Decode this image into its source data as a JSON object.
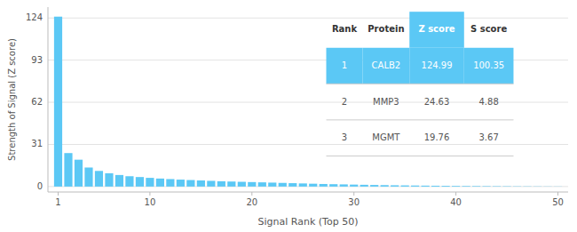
{
  "chart_data": {
    "type": "bar",
    "xlabel": "Signal Rank (Top 50)",
    "ylabel": "Strength of Signal (Z score)",
    "x": [
      1,
      2,
      3,
      4,
      5,
      6,
      7,
      8,
      9,
      10,
      11,
      12,
      13,
      14,
      15,
      16,
      17,
      18,
      19,
      20,
      21,
      22,
      23,
      24,
      25,
      26,
      27,
      28,
      29,
      30,
      31,
      32,
      33,
      34,
      35,
      36,
      37,
      38,
      39,
      40,
      41,
      42,
      43,
      44,
      45,
      46,
      47,
      48,
      49,
      50
    ],
    "values": [
      124.99,
      24.63,
      19.76,
      14.0,
      11.5,
      9.8,
      8.5,
      7.6,
      7.0,
      6.4,
      5.9,
      5.5,
      5.1,
      4.8,
      4.5,
      4.2,
      3.9,
      3.7,
      3.5,
      3.3,
      3.1,
      2.9,
      2.7,
      2.5,
      2.3,
      2.1,
      1.9,
      1.75,
      1.6,
      1.45,
      1.3,
      1.18,
      1.06,
      0.95,
      0.86,
      0.77,
      0.69,
      0.62,
      0.55,
      0.49,
      0.43,
      0.38,
      0.33,
      0.29,
      0.25,
      0.21,
      0.18,
      0.15,
      0.12,
      0.1
    ],
    "color": "#5bc8f5",
    "xlim": [
      0,
      51
    ],
    "xticks": [
      1,
      10,
      20,
      30,
      40,
      50
    ],
    "ylim": [
      -4,
      132
    ],
    "yticks": [
      0,
      31,
      62,
      93,
      124
    ],
    "grid": true,
    "table": {
      "headers": [
        "Rank",
        "Protein",
        "Z score",
        "S score"
      ],
      "rows": [
        [
          "1",
          "CALB2",
          "124.99",
          "100.35"
        ],
        [
          "2",
          "MMP3",
          "24.63",
          "4.88"
        ],
        [
          "3",
          "MGMT",
          "19.76",
          "3.67"
        ]
      ],
      "highlight": [
        true,
        false,
        false
      ]
    }
  }
}
